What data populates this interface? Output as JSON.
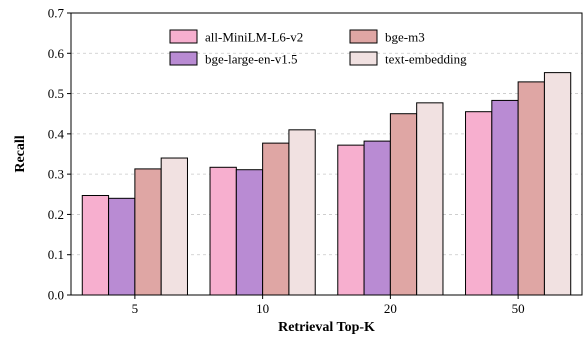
{
  "chart_data": {
    "type": "bar",
    "xlabel": "Retrieval Top-K",
    "ylabel": "Recall",
    "categories": [
      "5",
      "10",
      "20",
      "50"
    ],
    "ylim": [
      0,
      0.7
    ],
    "yticks": [
      "0.0",
      "0.1",
      "0.2",
      "0.3",
      "0.4",
      "0.5",
      "0.6",
      "0.7"
    ],
    "grid": "horizontal dashed",
    "legend_position": "top-center",
    "series": [
      {
        "name": "all-MiniLM-L6-v2",
        "color": "#F7AFCF",
        "values": [
          0.247,
          0.317,
          0.372,
          0.455
        ]
      },
      {
        "name": "bge-large-en-v1.5",
        "color": "#B98BD3",
        "values": [
          0.24,
          0.311,
          0.382,
          0.483
        ]
      },
      {
        "name": "bge-m3",
        "color": "#DFA6A4",
        "values": [
          0.313,
          0.377,
          0.45,
          0.529
        ]
      },
      {
        "name": "text-embedding",
        "color": "#F1E1E1",
        "values": [
          0.34,
          0.41,
          0.477,
          0.552
        ]
      }
    ]
  }
}
